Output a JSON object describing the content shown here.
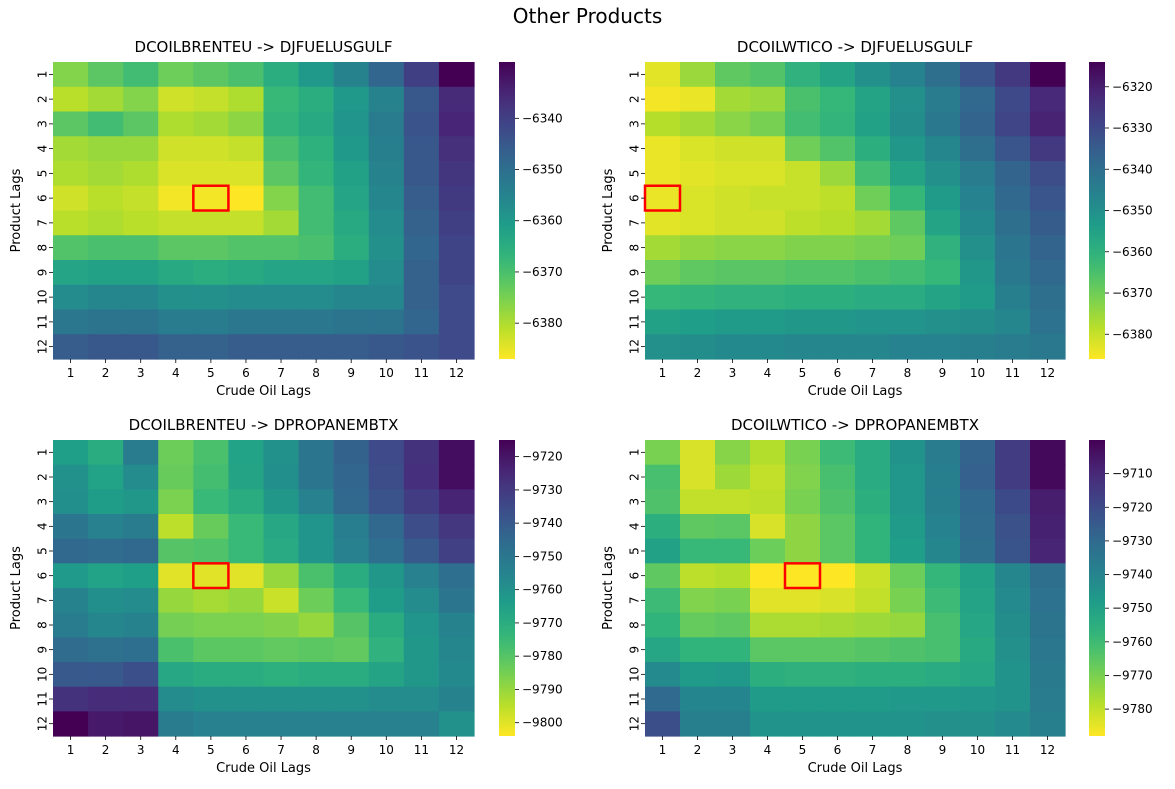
{
  "figure": {
    "title": "Other Products"
  },
  "colormap": {
    "name": "viridis_r",
    "stops": [
      "#fde725",
      "#b5de2b",
      "#6ece58",
      "#35b779",
      "#1f9e89",
      "#26828e",
      "#31688e",
      "#3e4989",
      "#482878",
      "#440154"
    ]
  },
  "highlight_color": "#ff0000",
  "chart_data": [
    {
      "type": "heatmap",
      "title": "DCOILBRENTEU -> DJFUELUSGULF",
      "xlabel": "Crude Oil Lags",
      "ylabel": "Product Lags",
      "x_categories": [
        "1",
        "2",
        "3",
        "4",
        "5",
        "6",
        "7",
        "8",
        "9",
        "10",
        "11",
        "12"
      ],
      "y_categories": [
        "1",
        "2",
        "3",
        "4",
        "5",
        "6",
        "7",
        "8",
        "9",
        "10",
        "11",
        "12"
      ],
      "colorbar": {
        "min": -6387,
        "max": -6329,
        "ticks": [
          -6340,
          -6350,
          -6360,
          -6370,
          -6380
        ]
      },
      "highlight": {
        "row": 6,
        "col": 5
      },
      "z": [
        [
          -6376,
          -6372,
          -6369,
          -6374,
          -6372,
          -6370,
          -6365,
          -6360,
          -6355,
          -6348,
          -6340,
          -6329
        ],
        [
          -6381,
          -6379,
          -6376,
          -6383,
          -6382,
          -6380,
          -6368,
          -6365,
          -6360,
          -6355,
          -6345,
          -6336
        ],
        [
          -6372,
          -6369,
          -6372,
          -6380,
          -6379,
          -6377,
          -6367,
          -6364,
          -6359,
          -6353,
          -6344,
          -6335
        ],
        [
          -6379,
          -6378,
          -6378,
          -6383,
          -6383,
          -6382,
          -6370,
          -6366,
          -6360,
          -6354,
          -6345,
          -6337
        ],
        [
          -6380,
          -6379,
          -6380,
          -6384,
          -6384,
          -6384,
          -6372,
          -6367,
          -6362,
          -6355,
          -6345,
          -6338
        ],
        [
          -6383,
          -6381,
          -6382,
          -6386,
          -6386,
          -6387,
          -6376,
          -6369,
          -6363,
          -6356,
          -6346,
          -6339
        ],
        [
          -6381,
          -6380,
          -6381,
          -6382,
          -6382,
          -6382,
          -6379,
          -6369,
          -6364,
          -6357,
          -6347,
          -6340
        ],
        [
          -6371,
          -6370,
          -6370,
          -6372,
          -6372,
          -6371,
          -6371,
          -6370,
          -6365,
          -6358,
          -6348,
          -6341
        ],
        [
          -6363,
          -6362,
          -6362,
          -6364,
          -6365,
          -6364,
          -6363,
          -6363,
          -6362,
          -6357,
          -6347,
          -6341
        ],
        [
          -6357,
          -6356,
          -6356,
          -6358,
          -6358,
          -6357,
          -6357,
          -6357,
          -6356,
          -6356,
          -6347,
          -6342
        ],
        [
          -6352,
          -6351,
          -6351,
          -6353,
          -6353,
          -6352,
          -6352,
          -6352,
          -6351,
          -6351,
          -6348,
          -6342
        ],
        [
          -6346,
          -6345,
          -6345,
          -6347,
          -6347,
          -6346,
          -6346,
          -6346,
          -6346,
          -6345,
          -6344,
          -6342
        ]
      ]
    },
    {
      "type": "heatmap",
      "title": "DCOILWTICO -> DJFUELUSGULF",
      "xlabel": "Crude Oil Lags",
      "ylabel": "Product Lags",
      "x_categories": [
        "1",
        "2",
        "3",
        "4",
        "5",
        "6",
        "7",
        "8",
        "9",
        "10",
        "11",
        "12"
      ],
      "y_categories": [
        "1",
        "2",
        "3",
        "4",
        "5",
        "6",
        "7",
        "8",
        "9",
        "10",
        "11",
        "12"
      ],
      "colorbar": {
        "min": -6386,
        "max": -6314,
        "ticks": [
          -6320,
          -6330,
          -6340,
          -6350,
          -6360,
          -6370,
          -6380
        ]
      },
      "highlight": {
        "row": 6,
        "col": 1
      },
      "z": [
        [
          -6383,
          -6375,
          -6368,
          -6366,
          -6360,
          -6356,
          -6350,
          -6346,
          -6340,
          -6333,
          -6326,
          -6314
        ],
        [
          -6385,
          -6384,
          -6376,
          -6375,
          -6365,
          -6362,
          -6356,
          -6350,
          -6344,
          -6338,
          -6330,
          -6322
        ],
        [
          -6378,
          -6376,
          -6373,
          -6371,
          -6364,
          -6361,
          -6355,
          -6349,
          -6343,
          -6337,
          -6329,
          -6321
        ],
        [
          -6384,
          -6382,
          -6381,
          -6381,
          -6370,
          -6366,
          -6359,
          -6352,
          -6347,
          -6340,
          -6333,
          -6326
        ],
        [
          -6384,
          -6383,
          -6382,
          -6382,
          -6380,
          -6375,
          -6364,
          -6356,
          -6350,
          -6344,
          -6337,
          -6331
        ],
        [
          -6384,
          -6382,
          -6381,
          -6380,
          -6380,
          -6379,
          -6370,
          -6362,
          -6353,
          -6346,
          -6338,
          -6333
        ],
        [
          -6383,
          -6382,
          -6381,
          -6381,
          -6379,
          -6378,
          -6376,
          -6368,
          -6356,
          -6348,
          -6340,
          -6335
        ],
        [
          -6376,
          -6374,
          -6373,
          -6373,
          -6372,
          -6372,
          -6371,
          -6370,
          -6360,
          -6350,
          -6342,
          -6337
        ],
        [
          -6370,
          -6368,
          -6367,
          -6367,
          -6366,
          -6366,
          -6365,
          -6364,
          -6362,
          -6352,
          -6343,
          -6338
        ],
        [
          -6362,
          -6361,
          -6360,
          -6360,
          -6359,
          -6359,
          -6358,
          -6358,
          -6356,
          -6353,
          -6345,
          -6340
        ],
        [
          -6355,
          -6354,
          -6353,
          -6353,
          -6352,
          -6352,
          -6351,
          -6351,
          -6350,
          -6349,
          -6347,
          -6341
        ],
        [
          -6350,
          -6349,
          -6348,
          -6348,
          -6347,
          -6347,
          -6347,
          -6346,
          -6346,
          -6345,
          -6344,
          -6343
        ]
      ]
    },
    {
      "type": "heatmap",
      "title": "DCOILBRENTEU -> DPROPANEMBTX",
      "xlabel": "Crude Oil Lags",
      "ylabel": "Product Lags",
      "x_categories": [
        "1",
        "2",
        "3",
        "4",
        "5",
        "6",
        "7",
        "8",
        "9",
        "10",
        "11",
        "12"
      ],
      "y_categories": [
        "1",
        "2",
        "3",
        "4",
        "5",
        "6",
        "7",
        "8",
        "9",
        "10",
        "11",
        "12"
      ],
      "colorbar": {
        "min": -9804,
        "max": -9715,
        "ticks": [
          -9720,
          -9730,
          -9740,
          -9750,
          -9760,
          -9770,
          -9780,
          -9790,
          -9800
        ]
      },
      "highlight": {
        "row": 6,
        "col": 5
      },
      "z": [
        [
          -9765,
          -9770,
          -9752,
          -9784,
          -9778,
          -9766,
          -9760,
          -9750,
          -9743,
          -9735,
          -9728,
          -9718
        ],
        [
          -9760,
          -9766,
          -9758,
          -9783,
          -9777,
          -9767,
          -9759,
          -9750,
          -9744,
          -9736,
          -9727,
          -9718
        ],
        [
          -9759,
          -9764,
          -9762,
          -9786,
          -9775,
          -9770,
          -9762,
          -9754,
          -9745,
          -9738,
          -9731,
          -9724
        ],
        [
          -9750,
          -9754,
          -9752,
          -9795,
          -9783,
          -9775,
          -9768,
          -9761,
          -9753,
          -9745,
          -9736,
          -9729
        ],
        [
          -9745,
          -9746,
          -9745,
          -9780,
          -9779,
          -9775,
          -9769,
          -9761,
          -9754,
          -9747,
          -9740,
          -9732
        ],
        [
          -9763,
          -9766,
          -9765,
          -9800,
          -9800,
          -9800,
          -9790,
          -9778,
          -9770,
          -9762,
          -9754,
          -9747
        ],
        [
          -9755,
          -9759,
          -9758,
          -9790,
          -9792,
          -9790,
          -9797,
          -9784,
          -9775,
          -9764,
          -9758,
          -9750
        ],
        [
          -9752,
          -9756,
          -9755,
          -9785,
          -9786,
          -9786,
          -9787,
          -9790,
          -9780,
          -9770,
          -9761,
          -9755
        ],
        [
          -9746,
          -9748,
          -9747,
          -9778,
          -9781,
          -9781,
          -9782,
          -9781,
          -9782,
          -9772,
          -9762,
          -9756
        ],
        [
          -9740,
          -9740,
          -9737,
          -9768,
          -9770,
          -9770,
          -9771,
          -9770,
          -9770,
          -9767,
          -9762,
          -9757
        ],
        [
          -9728,
          -9726,
          -9726,
          -9758,
          -9760,
          -9760,
          -9760,
          -9760,
          -9760,
          -9758,
          -9758,
          -9755
        ],
        [
          -9715,
          -9721,
          -9720,
          -9752,
          -9754,
          -9754,
          -9754,
          -9754,
          -9754,
          -9754,
          -9754,
          -9760
        ]
      ]
    },
    {
      "type": "heatmap",
      "title": "DCOILWTICO -> DPROPANEMBTX",
      "xlabel": "Crude Oil Lags",
      "ylabel": "Product Lags",
      "x_categories": [
        "1",
        "2",
        "3",
        "4",
        "5",
        "6",
        "7",
        "8",
        "9",
        "10",
        "11",
        "12"
      ],
      "y_categories": [
        "1",
        "2",
        "3",
        "4",
        "5",
        "6",
        "7",
        "8",
        "9",
        "10",
        "11",
        "12"
      ],
      "colorbar": {
        "min": -9788,
        "max": -9700,
        "ticks": [
          -9710,
          -9720,
          -9730,
          -9740,
          -9750,
          -9760,
          -9770,
          -9780
        ]
      },
      "highlight": {
        "row": 6,
        "col": 5
      },
      "z": [
        [
          -9770,
          -9783,
          -9772,
          -9778,
          -9770,
          -9760,
          -9754,
          -9745,
          -9737,
          -9728,
          -9716,
          -9702
        ],
        [
          -9762,
          -9783,
          -9775,
          -9780,
          -9771,
          -9762,
          -9754,
          -9746,
          -9738,
          -9727,
          -9716,
          -9702
        ],
        [
          -9763,
          -9780,
          -9780,
          -9779,
          -9770,
          -9763,
          -9755,
          -9746,
          -9738,
          -9730,
          -9720,
          -9707
        ],
        [
          -9755,
          -9766,
          -9765,
          -9783,
          -9773,
          -9765,
          -9757,
          -9748,
          -9739,
          -9731,
          -9722,
          -9708
        ],
        [
          -9750,
          -9759,
          -9759,
          -9768,
          -9773,
          -9765,
          -9757,
          -9749,
          -9741,
          -9732,
          -9723,
          -9709
        ],
        [
          -9766,
          -9779,
          -9778,
          -9788,
          -9788,
          -9788,
          -9781,
          -9768,
          -9758,
          -9750,
          -9741,
          -9732
        ],
        [
          -9760,
          -9771,
          -9770,
          -9784,
          -9784,
          -9783,
          -9780,
          -9770,
          -9760,
          -9751,
          -9742,
          -9733
        ],
        [
          -9757,
          -9767,
          -9766,
          -9777,
          -9777,
          -9776,
          -9775,
          -9774,
          -9762,
          -9752,
          -9743,
          -9734
        ],
        [
          -9752,
          -9757,
          -9757,
          -9765,
          -9765,
          -9765,
          -9764,
          -9763,
          -9762,
          -9753,
          -9744,
          -9735
        ],
        [
          -9742,
          -9748,
          -9747,
          -9755,
          -9756,
          -9756,
          -9755,
          -9755,
          -9754,
          -9752,
          -9745,
          -9736
        ],
        [
          -9730,
          -9740,
          -9740,
          -9748,
          -9748,
          -9748,
          -9748,
          -9747,
          -9747,
          -9746,
          -9745,
          -9737
        ],
        [
          -9721,
          -9738,
          -9738,
          -9745,
          -9745,
          -9745,
          -9745,
          -9745,
          -9744,
          -9744,
          -9742,
          -9738
        ]
      ]
    }
  ]
}
